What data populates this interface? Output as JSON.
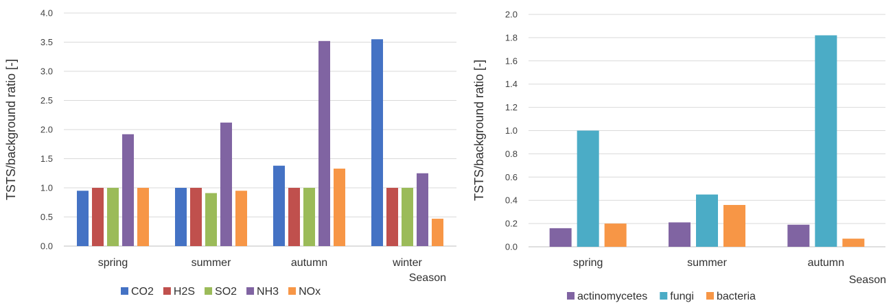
{
  "chart_data": [
    {
      "type": "bar",
      "categories": [
        "spring",
        "summer",
        "autumn",
        "winter"
      ],
      "series": [
        {
          "name": "CO2",
          "values": [
            0.95,
            1.0,
            1.38,
            3.55
          ]
        },
        {
          "name": "H2S",
          "values": [
            1.0,
            1.0,
            1.0,
            1.0
          ]
        },
        {
          "name": "SO2",
          "values": [
            1.0,
            0.91,
            1.0,
            1.0
          ]
        },
        {
          "name": "NH3",
          "values": [
            1.92,
            2.12,
            3.52,
            1.25
          ]
        },
        {
          "name": "NOx",
          "values": [
            1.0,
            0.95,
            1.33,
            0.47
          ]
        }
      ],
      "colors": [
        "#4472c4",
        "#c0504d",
        "#9bbb59",
        "#8064a2",
        "#f79646"
      ],
      "ylabel": "TSTS/background ratio [-]",
      "xlabel": "Season",
      "ylim": [
        0,
        4.0
      ],
      "yticks": [
        "0.0",
        "0.5",
        "1.0",
        "1.5",
        "2.0",
        "2.5",
        "3.0",
        "3.5",
        "4.0"
      ],
      "grid": true,
      "legend": "bottom"
    },
    {
      "type": "bar",
      "categories": [
        "spring",
        "summer",
        "autumn"
      ],
      "series": [
        {
          "name": "actinomycetes",
          "values": [
            0.16,
            0.21,
            0.19
          ]
        },
        {
          "name": "fungi",
          "values": [
            1.0,
            0.45,
            1.82
          ]
        },
        {
          "name": "bacteria",
          "values": [
            0.2,
            0.36,
            0.07
          ]
        }
      ],
      "colors": [
        "#8064a2",
        "#4bacc6",
        "#f79646"
      ],
      "ylabel": "TSTS/background ratio [-]",
      "xlabel": "Season",
      "ylim": [
        0,
        2.0
      ],
      "yticks": [
        "0.0",
        "0.2",
        "0.4",
        "0.6",
        "0.8",
        "1.0",
        "1.2",
        "1.4",
        "1.6",
        "1.8",
        "2.0"
      ],
      "grid": true,
      "legend": "bottom"
    }
  ]
}
